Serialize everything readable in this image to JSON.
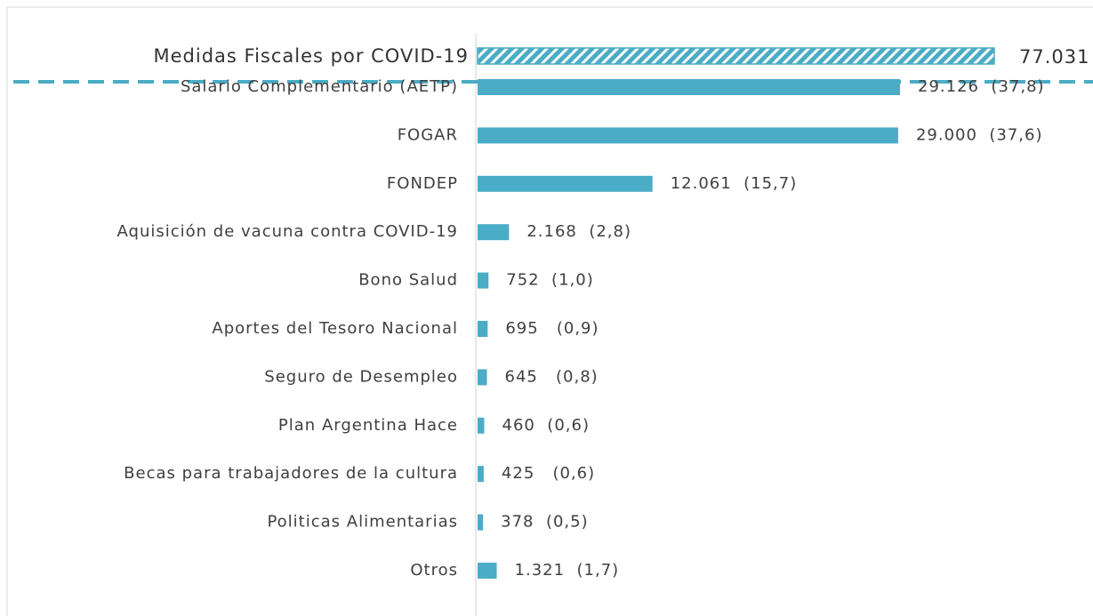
{
  "chart_data": {
    "type": "bar",
    "orientation": "horizontal",
    "color": "#4bacc6",
    "total": {
      "name": "Medidas Fiscales por COVID-19",
      "value": 77031,
      "value_label": "77.031"
    },
    "categories": [
      "Salario Complementario (AETP)",
      "FOGAR",
      "FONDEP",
      "Aquisición de vacuna contra COVID-19",
      "Bono Salud",
      "Aportes del Tesoro Nacional",
      "Seguro de Desempleo",
      "Plan Argentina Hace",
      "Becas para trabajadores de la cultura",
      "Politicas Alimentarias",
      "Otros"
    ],
    "values": [
      29126,
      29000,
      12061,
      2168,
      752,
      695,
      645,
      460,
      425,
      378,
      1321
    ],
    "value_labels": [
      "29.126  (37,8)",
      "29.000  (37,6)",
      "12.061  (15,7)",
      "2.168  (2,8)",
      "752  (1,0)",
      "695   (0,9)",
      "645   (0,8)",
      "460  (0,6)",
      "425   (0,6)",
      "378  (0,5)",
      "1.321  (1,7)"
    ]
  }
}
